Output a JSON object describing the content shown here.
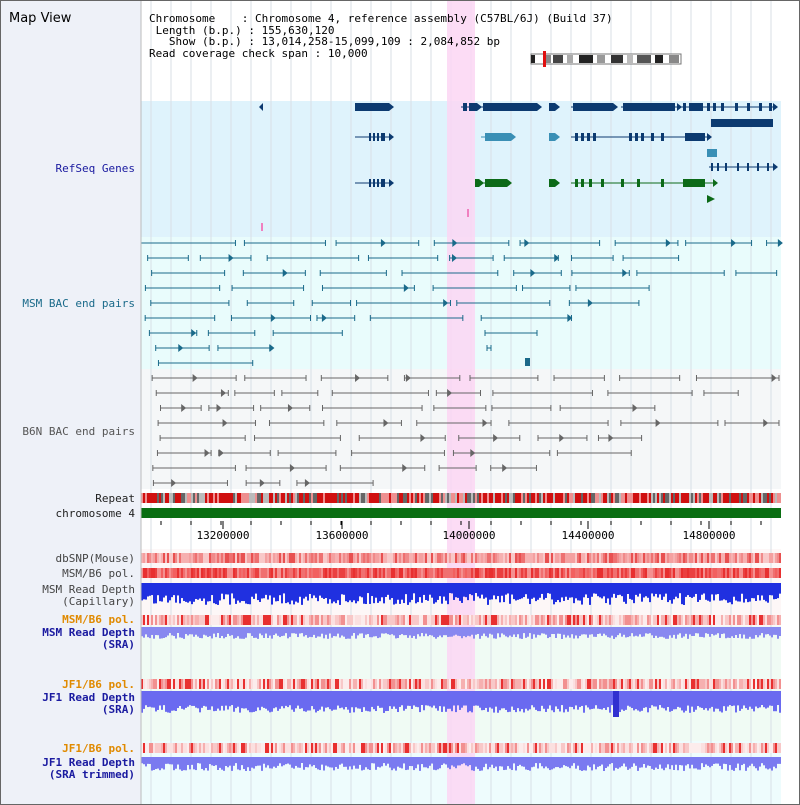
{
  "view": {
    "title": "Map View",
    "info": {
      "chromosome_label": "Chromosome",
      "chromosome_value": "Chromosome 4, reference assembly (C57BL/6J) (Build 37)",
      "length_label": "Length (b.p.)",
      "length_value": "155,630,120",
      "show_label": "Show (b.p.)",
      "show_value": "13,014,258-15,099,109 : 2,084,852 bp",
      "coverage_label": "Read coverage check span",
      "coverage_value": "10,000"
    }
  },
  "tracks": {
    "refseq": "RefSeq Genes",
    "msm_bac": "MSM BAC end pairs",
    "b6n_bac": "B6N BAC end pairs",
    "repeat": "Repeat",
    "chromosome": "chromosome 4",
    "dbsnp": "dbSNP(Mouse)",
    "msm_b6_pol": "MSM/B6 pol.",
    "msm_read_depth_cap_1": "MSM Read Depth",
    "msm_read_depth_cap_2": "(Capillary)",
    "msm_b6_pol_2": "MSM/B6 pol.",
    "msm_read_depth_sra_1": "MSM Read Depth",
    "msm_read_depth_sra_2": "(SRA)",
    "jf1_b6_pol": "JF1/B6 pol.",
    "jf1_read_depth_sra_1": "JF1 Read Depth",
    "jf1_read_depth_sra_2": "(SRA)",
    "jf1_b6_pol_2": "JF1/B6 pol.",
    "jf1_read_depth_trim_1": "JF1 Read Depth",
    "jf1_read_depth_trim_2": "(SRA trimmed)"
  },
  "axis": {
    "ticks": [
      "13200000",
      "13600000",
      "14000000",
      "14400000",
      "14800000"
    ]
  },
  "colors": {
    "refseq_bg": "#dff3fc",
    "msm_bg": "#e9fcfc",
    "b6n_bg": "#f5f7f8",
    "highlight": "#fbd6f3",
    "refseq_dark": "#0c3a70",
    "refseq_mid": "#3a8fb5",
    "refseq_green": "#0c6a18",
    "msm_line": "#1a6a8a",
    "b6n_line": "#666666",
    "chromosome": "#0a6e12",
    "label_blue": "#1a1aa0",
    "label_teal": "#1a6a8a",
    "label_orange": "#e08a00",
    "label_gray": "#444444"
  }
}
